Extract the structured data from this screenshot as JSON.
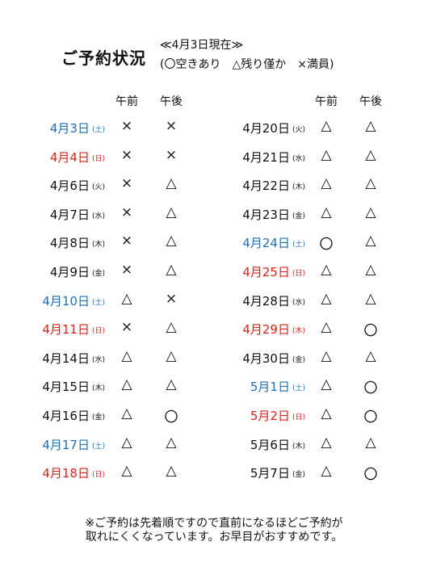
{
  "header": {
    "title": "ご予約状況",
    "as_of": "≪4月3日現在≫",
    "legend": "(〇空きあり　△残り僅か　×満員)"
  },
  "columns": {
    "am": "午前",
    "pm": "午後"
  },
  "colors": {
    "saturday": "#1e6fb8",
    "sunday_holiday": "#d9261c",
    "weekday": "#111111"
  },
  "left": [
    {
      "date": "4月3日",
      "dow": "(土)",
      "type": "sat",
      "am": "×",
      "pm": "×"
    },
    {
      "date": "4月4日",
      "dow": "(日)",
      "type": "sun",
      "am": "×",
      "pm": "×"
    },
    {
      "date": "4月6日",
      "dow": "(火)",
      "type": "wd",
      "am": "×",
      "pm": "△"
    },
    {
      "date": "4月7日",
      "dow": "(水)",
      "type": "wd",
      "am": "×",
      "pm": "△"
    },
    {
      "date": "4月8日",
      "dow": "(木)",
      "type": "wd",
      "am": "×",
      "pm": "△"
    },
    {
      "date": "4月9日",
      "dow": "(金)",
      "type": "wd",
      "am": "×",
      "pm": "△"
    },
    {
      "date": "4月10日",
      "dow": "(土)",
      "type": "sat",
      "am": "△",
      "pm": "×"
    },
    {
      "date": "4月11日",
      "dow": "(日)",
      "type": "sun",
      "am": "×",
      "pm": "△"
    },
    {
      "date": "4月14日",
      "dow": "(水)",
      "type": "wd",
      "am": "△",
      "pm": "△"
    },
    {
      "date": "4月15日",
      "dow": "(木)",
      "type": "wd",
      "am": "△",
      "pm": "△"
    },
    {
      "date": "4月16日",
      "dow": "(金)",
      "type": "wd",
      "am": "△",
      "pm": "〇"
    },
    {
      "date": "4月17日",
      "dow": "(土)",
      "type": "sat",
      "am": "△",
      "pm": "△"
    },
    {
      "date": "4月18日",
      "dow": "(日)",
      "type": "sun",
      "am": "△",
      "pm": "△"
    }
  ],
  "right": [
    {
      "date": "4月20日",
      "dow": "(火)",
      "type": "wd",
      "am": "△",
      "pm": "△"
    },
    {
      "date": "4月21日",
      "dow": "(水)",
      "type": "wd",
      "am": "△",
      "pm": "△"
    },
    {
      "date": "4月22日",
      "dow": "(木)",
      "type": "wd",
      "am": "△",
      "pm": "△"
    },
    {
      "date": "4月23日",
      "dow": "(金)",
      "type": "wd",
      "am": "△",
      "pm": "△"
    },
    {
      "date": "4月24日",
      "dow": "(土)",
      "type": "sat",
      "am": "〇",
      "pm": "△"
    },
    {
      "date": "4月25日",
      "dow": "(日)",
      "type": "sun",
      "am": "△",
      "pm": "△"
    },
    {
      "date": "4月28日",
      "dow": "(水)",
      "type": "wd",
      "am": "△",
      "pm": "△"
    },
    {
      "date": "4月29日",
      "dow": "(木)",
      "type": "sun",
      "am": "△",
      "pm": "〇"
    },
    {
      "date": "4月30日",
      "dow": "(金)",
      "type": "wd",
      "am": "△",
      "pm": "△"
    },
    {
      "date": "5月1日",
      "dow": "(土)",
      "type": "sat",
      "am": "△",
      "pm": "〇"
    },
    {
      "date": "5月2日",
      "dow": "(日)",
      "type": "sun",
      "am": "△",
      "pm": "〇"
    },
    {
      "date": "5月6日",
      "dow": "(木)",
      "type": "wd",
      "am": "△",
      "pm": "△"
    },
    {
      "date": "5月7日",
      "dow": "(金)",
      "type": "wd",
      "am": "△",
      "pm": "〇"
    }
  ],
  "footer": {
    "line1": "※ご予約は先着順ですので直前になるほどご予約が",
    "line2": "取れにくくなっています。お早目がおすすめです。"
  }
}
